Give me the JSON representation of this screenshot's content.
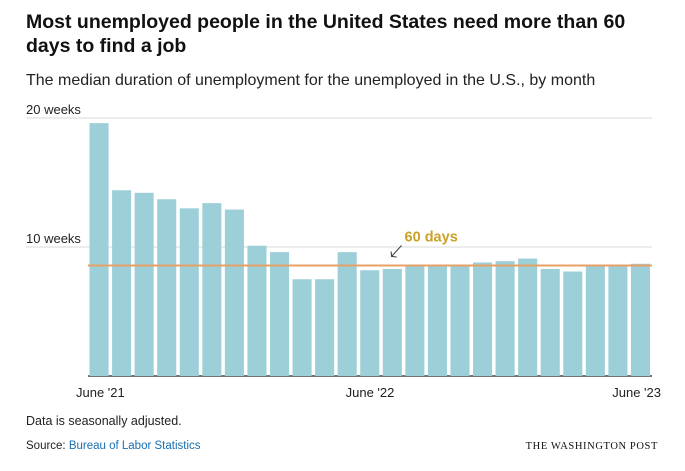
{
  "title": "Most unemployed people in the United States need more than 60 days to find a job",
  "subtitle": "The median duration of unemployment for the unemployed in the U.S., by month",
  "note": "Data is seasonally adjusted.",
  "source_prefix": "Source: ",
  "source_link": "Bureau of Labor Statistics",
  "brand": "THE WASHINGTON POST",
  "colors": {
    "bar": "#9ccfd8",
    "reference_line": "#e8a066",
    "annotation": "#c9a227",
    "grid": "#d9d9d9",
    "axis": "#222222",
    "link": "#1a6fb0"
  },
  "chart_data": {
    "type": "bar",
    "categories": [
      "June '21",
      "",
      "",
      "",
      "",
      "",
      "",
      "",
      "",
      "",
      "",
      "",
      "June '22",
      "",
      "",
      "",
      "",
      "",
      "",
      "",
      "",
      "",
      "",
      "",
      "June '23"
    ],
    "x_tick_labels": [
      "June '21",
      "June '22",
      "June '23"
    ],
    "values": [
      19.6,
      14.4,
      14.2,
      13.7,
      13.0,
      13.4,
      12.9,
      10.1,
      9.6,
      7.5,
      7.5,
      9.6,
      8.2,
      8.3,
      8.6,
      8.6,
      8.5,
      8.8,
      8.9,
      9.1,
      8.3,
      8.1,
      8.5,
      8.6,
      8.7
    ],
    "y_ticks": [
      10,
      20
    ],
    "y_tick_labels": [
      "10 weeks",
      "20 weeks"
    ],
    "ylim": [
      0,
      20
    ],
    "reference_line": {
      "value": 8.57,
      "label": "60 days"
    },
    "grid": true
  }
}
